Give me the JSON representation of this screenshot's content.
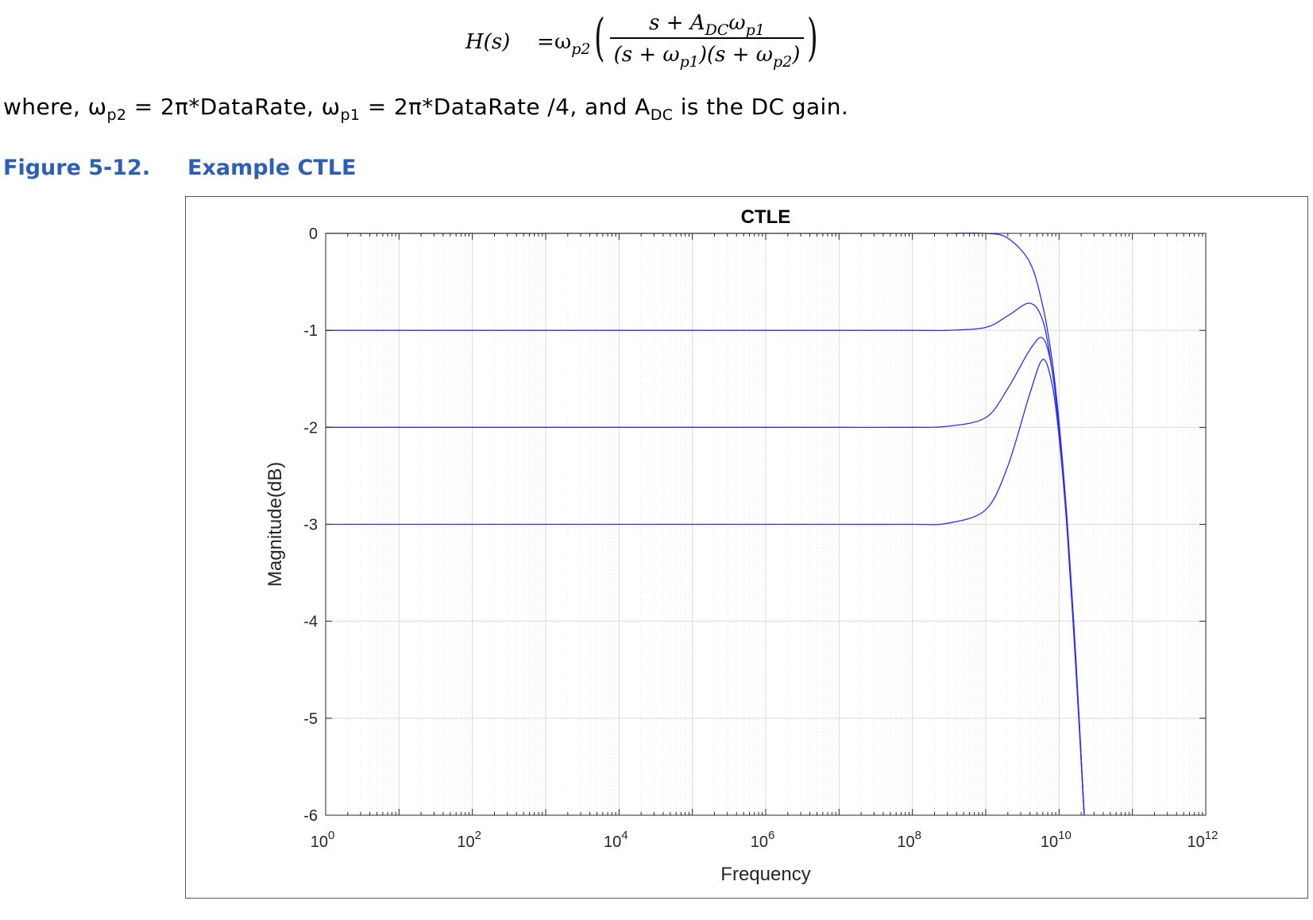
{
  "equation": {
    "lhs": "H(s)",
    "equals": "=",
    "omega": "ω",
    "omega_sub": "p2",
    "numerator_s": "s + A",
    "numerator_sub_dc": "DC",
    "numerator_omega": "ω",
    "numerator_sub_p1": "p1",
    "denominator_a": "(s + ω",
    "denominator_sub_p1": "p1",
    "denominator_b": ")(s + ω",
    "denominator_sub_p2": "p2",
    "denominator_c": ")"
  },
  "where_line": {
    "part1": "where, ω",
    "sub1": "p2",
    "part2": " = 2π*DataRate, ω",
    "sub2": "p1",
    "part3": " = 2π*DataRate /4, and A",
    "sub3": "DC",
    "part4": " is the DC gain."
  },
  "caption": {
    "number": "Figure 5-12.",
    "title": "Example CTLE"
  },
  "chart_data": {
    "type": "line",
    "title": "CTLE",
    "xlabel": "Frequency",
    "ylabel": "Magnitude(dB)",
    "xscale": "log",
    "xlim": [
      1,
      1000000000000.0
    ],
    "ylim": [
      -6,
      0
    ],
    "grid": true,
    "x_ticks": [
      {
        "base": "10",
        "exp": "0"
      },
      {
        "base": "10",
        "exp": "2"
      },
      {
        "base": "10",
        "exp": "4"
      },
      {
        "base": "10",
        "exp": "6"
      },
      {
        "base": "10",
        "exp": "8"
      },
      {
        "base": "10",
        "exp": "10"
      },
      {
        "base": "10",
        "exp": "12"
      }
    ],
    "y_ticks": [
      "0",
      "-1",
      "-2",
      "-3",
      "-4",
      "-5",
      "-6"
    ],
    "line_color": "#2b2bff",
    "grid_color": "#d9d9d9",
    "x": [
      1,
      100.0,
      10000.0,
      1000000.0,
      10000000.0,
      100000000.0,
      300000000.0,
      1000000000.0,
      2000000000.0,
      4000000000.0,
      6000000000.0,
      8000000000.0,
      10000000000.0,
      13000000000.0,
      17000000000.0,
      22000000000.0
    ],
    "series": [
      {
        "values": [
          0,
          0,
          0,
          0,
          0,
          0,
          0,
          0,
          -0.05,
          -0.3,
          -0.75,
          -1.3,
          -1.95,
          -3.0,
          -4.4,
          -6.0
        ]
      },
      {
        "values": [
          -1,
          -1,
          -1,
          -1,
          -1,
          -1,
          -1,
          -0.97,
          -0.85,
          -0.72,
          -0.9,
          -1.4,
          -2.0,
          -3.05,
          -4.45,
          -6.0
        ]
      },
      {
        "values": [
          -2,
          -2,
          -2,
          -2,
          -2,
          -2,
          -1.99,
          -1.9,
          -1.6,
          -1.2,
          -1.08,
          -1.4,
          -2.05,
          -3.1,
          -4.5,
          -6.0
        ]
      },
      {
        "values": [
          -3,
          -3,
          -3,
          -3,
          -3,
          -3,
          -2.99,
          -2.85,
          -2.4,
          -1.65,
          -1.3,
          -1.55,
          -2.1,
          -3.1,
          -4.5,
          -6.0
        ]
      }
    ]
  }
}
